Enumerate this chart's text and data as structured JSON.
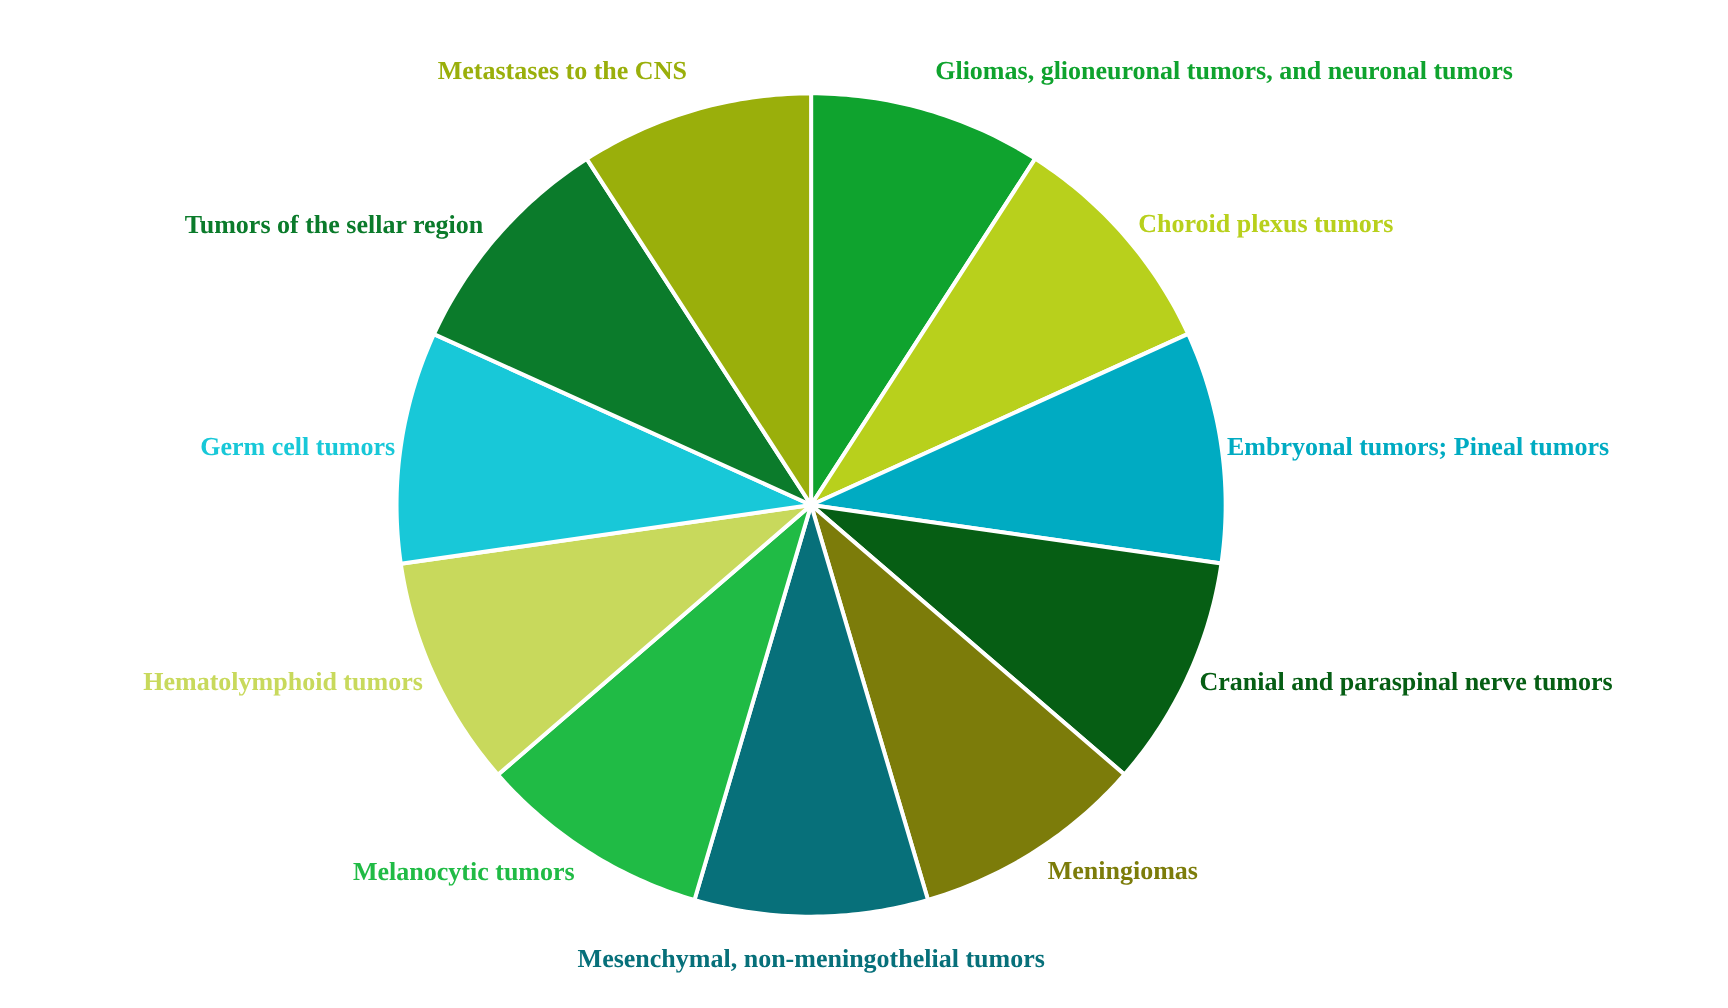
{
  "chart_data": {
    "type": "pie",
    "categories": [
      "Gliomas, glioneuronal tumors, and neuronal tumors",
      "Choroid plexus tumors",
      "Embryonal tumors; Pineal tumors",
      "Cranial and paraspinal nerve tumors",
      "Meningiomas",
      "Mesenchymal, non-meningothelial tumors",
      "Melanocytic tumors",
      "Hematolymphoid tumors",
      "Germ cell tumors",
      "Tumors of the sellar region",
      "Metastases to the CNS"
    ],
    "values": [
      9.09,
      9.09,
      9.09,
      9.09,
      9.09,
      9.09,
      9.09,
      9.09,
      9.09,
      9.09,
      9.1
    ],
    "colors": [
      "#0fa32e",
      "#b8d01c",
      "#00abc2",
      "#065e14",
      "#7c7c0a",
      "#07707a",
      "#20bb45",
      "#c8d95c",
      "#18c8d8",
      "#0b7b2b",
      "#9aaf0b"
    ]
  }
}
